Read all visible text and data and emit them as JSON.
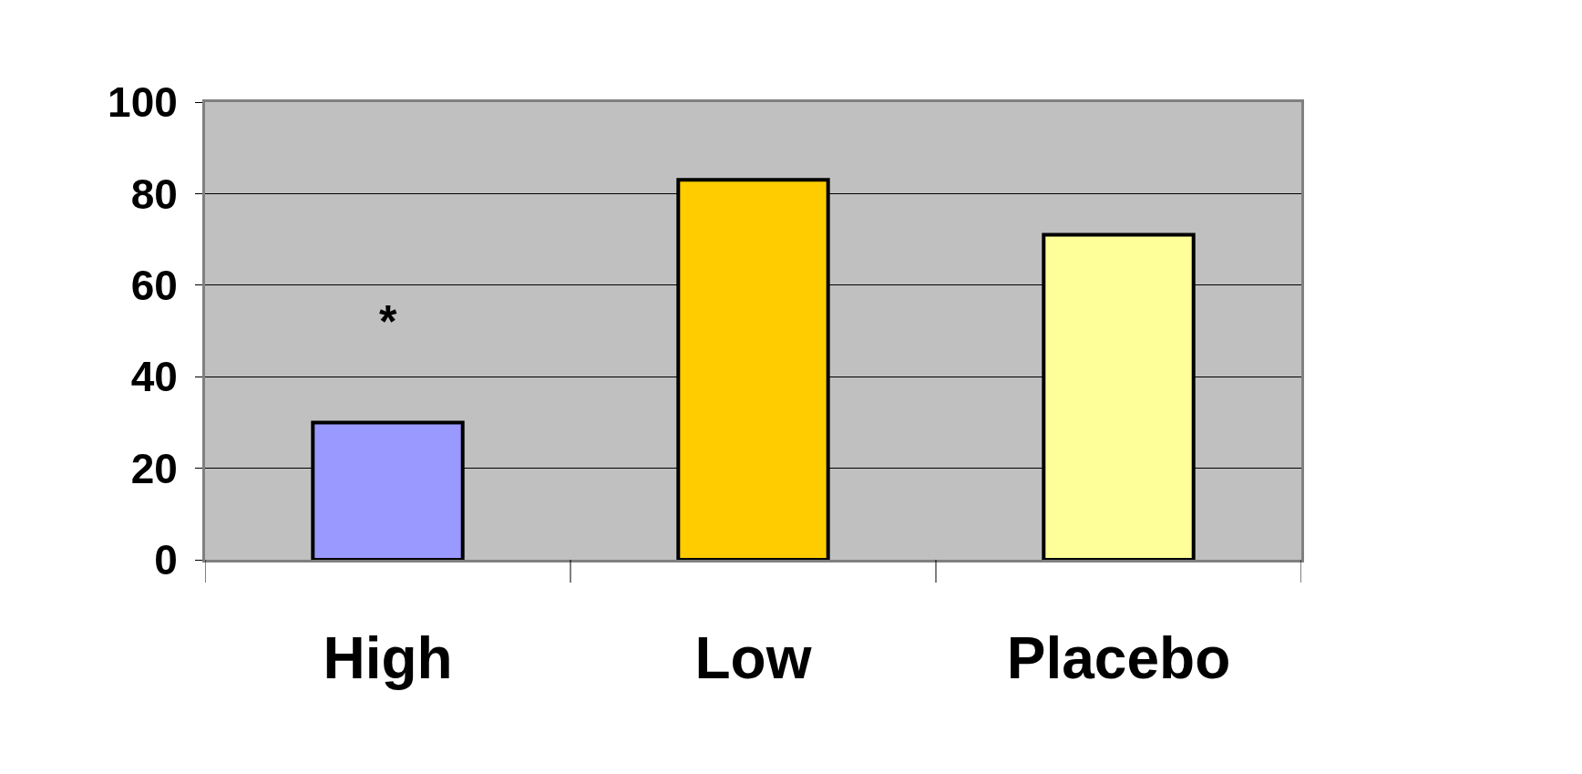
{
  "chart_data": {
    "type": "bar",
    "categories": [
      "High",
      "Low",
      "Placebo"
    ],
    "values": [
      30,
      83,
      71
    ],
    "colors": [
      "#9999ff",
      "#ffcc00",
      "#ffff99"
    ],
    "ylim": [
      0,
      100
    ],
    "yticks": [
      0,
      20,
      40,
      60,
      80,
      100
    ],
    "grid": "y",
    "annotations": [
      "*"
    ]
  }
}
